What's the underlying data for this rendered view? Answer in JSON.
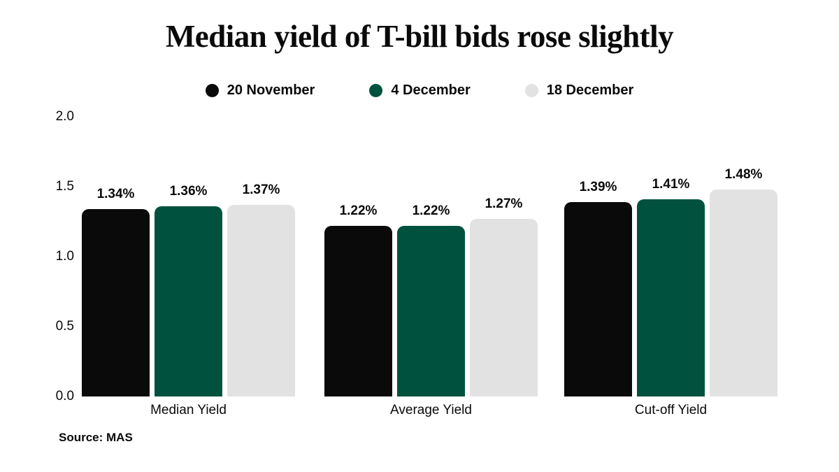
{
  "title": "Median yield of T-bill bids rose slightly",
  "source": "Source: MAS",
  "colors": {
    "series_black": "#0a0a0a",
    "series_green": "#00523e",
    "series_gray": "#e2e2e2",
    "background": "#ffffff"
  },
  "legend": [
    {
      "label": "20 November",
      "color": "#0a0a0a"
    },
    {
      "label": "4 December",
      "color": "#00523e"
    },
    {
      "label": "18 December",
      "color": "#e2e2e2"
    }
  ],
  "chart_data": {
    "type": "bar",
    "title": "Median yield of T-bill bids rose slightly",
    "categories": [
      "Median Yield",
      "Average Yield",
      "Cut-off Yield"
    ],
    "series": [
      {
        "name": "20 November",
        "color": "#0a0a0a",
        "values": [
          1.34,
          1.22,
          1.39
        ],
        "labels": [
          "1.34%",
          "1.22%",
          "1.39%"
        ]
      },
      {
        "name": "4 December",
        "color": "#00523e",
        "values": [
          1.36,
          1.22,
          1.41
        ],
        "labels": [
          "1.36%",
          "1.22%",
          "1.41%"
        ]
      },
      {
        "name": "18 December",
        "color": "#e2e2e2",
        "values": [
          1.37,
          1.27,
          1.48
        ],
        "labels": [
          "1.37%",
          "1.27%",
          "1.48%"
        ]
      }
    ],
    "xlabel": "",
    "ylabel": "",
    "ylim": [
      0,
      2.0
    ],
    "y_ticks": [
      "2.0",
      "1.5",
      "1.0",
      "0.5",
      "0.0"
    ],
    "grid": false,
    "legend_position": "top-center"
  }
}
